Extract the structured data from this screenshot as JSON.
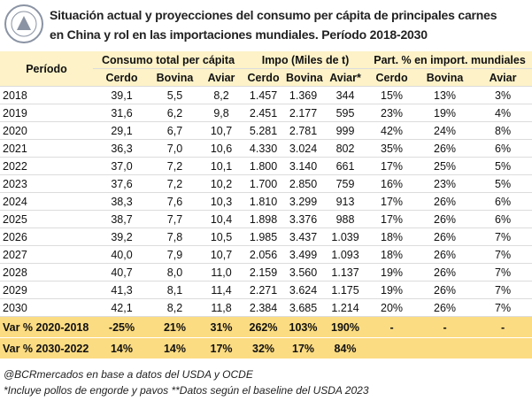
{
  "header": {
    "title_line1": "Situación actual y proyecciones del consumo per cápita de principales carnes",
    "title_line2": "en China y rol en las importaciones mundiales. Período 2018-2030"
  },
  "table": {
    "column_groups": [
      "Período",
      "Consumo total per cápita",
      "Impo (Miles de t)",
      "Part. % en import. mundiales"
    ],
    "columns": [
      "Cerdo",
      "Bovina",
      "Aviar",
      "Cerdo",
      "Bovina",
      "Aviar*",
      "Cerdo",
      "Bovina",
      "Aviar"
    ],
    "rows": [
      [
        "2018",
        "39,1",
        "5,5",
        "8,2",
        "1.457",
        "1.369",
        "344",
        "15%",
        "13%",
        "3%"
      ],
      [
        "2019",
        "31,6",
        "6,2",
        "9,8",
        "2.451",
        "2.177",
        "595",
        "23%",
        "19%",
        "4%"
      ],
      [
        "2020",
        "29,1",
        "6,7",
        "10,7",
        "5.281",
        "2.781",
        "999",
        "42%",
        "24%",
        "8%"
      ],
      [
        "2021",
        "36,3",
        "7,0",
        "10,6",
        "4.330",
        "3.024",
        "802",
        "35%",
        "26%",
        "6%"
      ],
      [
        "2022",
        "37,0",
        "7,2",
        "10,1",
        "1.800",
        "3.140",
        "661",
        "17%",
        "25%",
        "5%"
      ],
      [
        "2023",
        "37,6",
        "7,2",
        "10,2",
        "1.700",
        "2.850",
        "759",
        "16%",
        "23%",
        "5%"
      ],
      [
        "2024",
        "38,3",
        "7,6",
        "10,3",
        "1.810",
        "3.299",
        "913",
        "17%",
        "26%",
        "6%"
      ],
      [
        "2025",
        "38,7",
        "7,7",
        "10,4",
        "1.898",
        "3.376",
        "988",
        "17%",
        "26%",
        "6%"
      ],
      [
        "2026",
        "39,2",
        "7,8",
        "10,5",
        "1.985",
        "3.437",
        "1.039",
        "18%",
        "26%",
        "7%"
      ],
      [
        "2027",
        "40,0",
        "7,9",
        "10,7",
        "2.056",
        "3.499",
        "1.093",
        "18%",
        "26%",
        "7%"
      ],
      [
        "2028",
        "40,7",
        "8,0",
        "11,0",
        "2.159",
        "3.560",
        "1.137",
        "19%",
        "26%",
        "7%"
      ],
      [
        "2029",
        "41,3",
        "8,1",
        "11,4",
        "2.271",
        "3.624",
        "1.175",
        "19%",
        "26%",
        "7%"
      ],
      [
        "2030",
        "42,1",
        "8,2",
        "11,8",
        "2.384",
        "3.685",
        "1.214",
        "20%",
        "26%",
        "7%"
      ]
    ],
    "summary_rows": [
      [
        "Var % 2020-2018",
        "-25%",
        "21%",
        "31%",
        "262%",
        "103%",
        "190%",
        "-",
        "-",
        "-"
      ],
      [
        "Var % 2030-2022",
        "14%",
        "14%",
        "17%",
        "32%",
        "17%",
        "84%"
      ]
    ]
  },
  "footnotes": [
    "@BCRmercados en base a datos del USDA y OCDE",
    "*Incluye pollos de engorde y pavos **Datos según el baseline del USDA 2023"
  ]
}
